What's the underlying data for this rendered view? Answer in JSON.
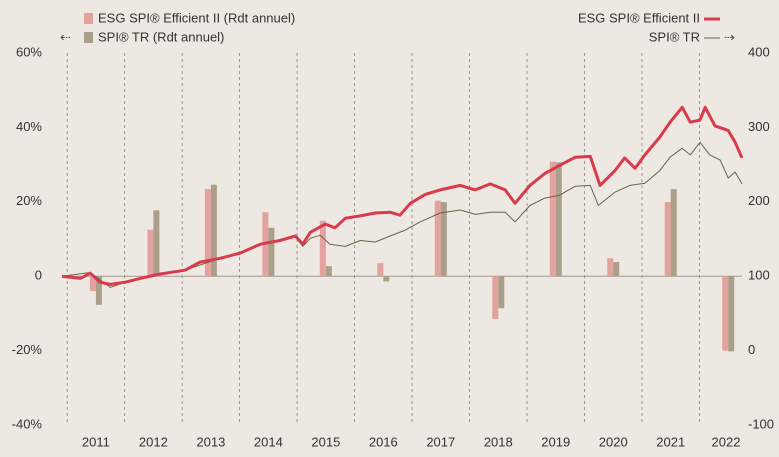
{
  "chart_data": {
    "type": "bar-line",
    "xlim": [
      2010.91,
      2022.74
    ],
    "xticks": [
      2011,
      2012,
      2013,
      2014,
      2015,
      2016,
      2017,
      2018,
      2019,
      2020,
      2021,
      2022
    ],
    "xgrid": true,
    "ylim": [
      -40,
      60
    ],
    "yticks": [
      {
        "value": 60,
        "label": "60%"
      },
      {
        "value": 40,
        "label": "40%"
      },
      {
        "value": 20,
        "label": "20%"
      },
      0,
      {
        "value": -20,
        "label": "-20%"
      },
      {
        "value": -40,
        "label": "-40%"
      }
    ],
    "y2lim": [
      -100,
      400
    ],
    "y2ticks": [
      400,
      300,
      200,
      100,
      0,
      -100
    ],
    "series": [
      {
        "name": "ESG SPI® Efficient II (Rdt annuel)",
        "type": "bar",
        "color": "#e3a29d",
        "x": [
          2011.5,
          2012.5,
          2013.5,
          2014.5,
          2015.5,
          2016.5,
          2017.5,
          2018.5,
          2019.5,
          2020.5,
          2021.5,
          2022.5
        ],
        "values": [
          -4.0,
          12.5,
          23.4,
          17.2,
          14.9,
          3.5,
          20.3,
          -11.5,
          30.8,
          4.8,
          19.9,
          -20.0
        ]
      },
      {
        "name": "SPI® TR (Rdt annuel)",
        "type": "bar",
        "color": "#aa9f89",
        "x": [
          2011.5,
          2012.5,
          2013.5,
          2014.5,
          2015.5,
          2016.5,
          2017.5,
          2018.5,
          2019.5,
          2020.5,
          2021.5,
          2022.5
        ],
        "values": [
          -7.7,
          17.7,
          24.6,
          13.0,
          2.7,
          -1.4,
          19.9,
          -8.6,
          30.6,
          3.8,
          23.4,
          -20.2
        ]
      },
      {
        "name": "ESG SPI® Efficient II",
        "type": "line",
        "axis": "y2",
        "color": "#d93a4c",
        "x": [
          2010.91,
          2011.23,
          2011.4,
          2011.57,
          2011.75,
          2012.01,
          2012.27,
          2012.62,
          2013.05,
          2013.31,
          2013.66,
          2014.01,
          2014.36,
          2014.7,
          2014.97,
          2015.1,
          2015.23,
          2015.49,
          2015.66,
          2015.84,
          2016.1,
          2016.36,
          2016.62,
          2016.79,
          2016.97,
          2017.23,
          2017.49,
          2017.84,
          2018.1,
          2018.36,
          2018.62,
          2018.79,
          2019.05,
          2019.31,
          2019.57,
          2019.84,
          2020.1,
          2020.27,
          2020.53,
          2020.7,
          2020.88,
          2021.05,
          2021.31,
          2021.49,
          2021.7,
          2021.84,
          2022.01,
          2022.1,
          2022.27,
          2022.5,
          2022.62,
          2022.74
        ],
        "values": [
          100,
          97,
          104,
          92,
          89,
          92,
          97,
          103,
          108,
          119,
          124,
          131,
          143,
          148,
          154,
          143,
          159,
          170,
          165,
          178,
          181,
          185,
          186,
          182,
          198,
          210,
          216,
          222,
          216,
          224,
          216,
          198,
          222,
          238,
          249,
          260,
          261,
          222,
          242,
          259,
          245,
          263,
          287,
          307,
          327,
          307,
          310,
          327,
          302,
          296,
          280,
          259
        ]
      },
      {
        "name": "SPI® TR",
        "type": "line",
        "axis": "y2",
        "color": "#6e6148",
        "x": [
          2010.91,
          2011.4,
          2011.75,
          2012.01,
          2012.27,
          2012.62,
          2013.05,
          2013.31,
          2013.66,
          2014.01,
          2014.36,
          2014.7,
          2014.97,
          2015.1,
          2015.23,
          2015.4,
          2015.57,
          2015.84,
          2016.1,
          2016.36,
          2016.62,
          2016.88,
          2017.14,
          2017.49,
          2017.84,
          2018.1,
          2018.36,
          2018.62,
          2018.79,
          2019.05,
          2019.31,
          2019.57,
          2019.84,
          2020.1,
          2020.24,
          2020.53,
          2020.79,
          2021.05,
          2021.31,
          2021.49,
          2021.7,
          2021.84,
          2022.01,
          2022.18,
          2022.36,
          2022.5,
          2022.62,
          2022.74
        ],
        "values": [
          100,
          105,
          85,
          92,
          97,
          103,
          108,
          115,
          124,
          132,
          143,
          148,
          154,
          140,
          151,
          155,
          143,
          140,
          148,
          146,
          154,
          162,
          173,
          185,
          189,
          183,
          186,
          186,
          173,
          195,
          205,
          209,
          221,
          222,
          195,
          213,
          222,
          225,
          242,
          260,
          272,
          263,
          280,
          263,
          256,
          232,
          240,
          224
        ]
      }
    ]
  }
}
